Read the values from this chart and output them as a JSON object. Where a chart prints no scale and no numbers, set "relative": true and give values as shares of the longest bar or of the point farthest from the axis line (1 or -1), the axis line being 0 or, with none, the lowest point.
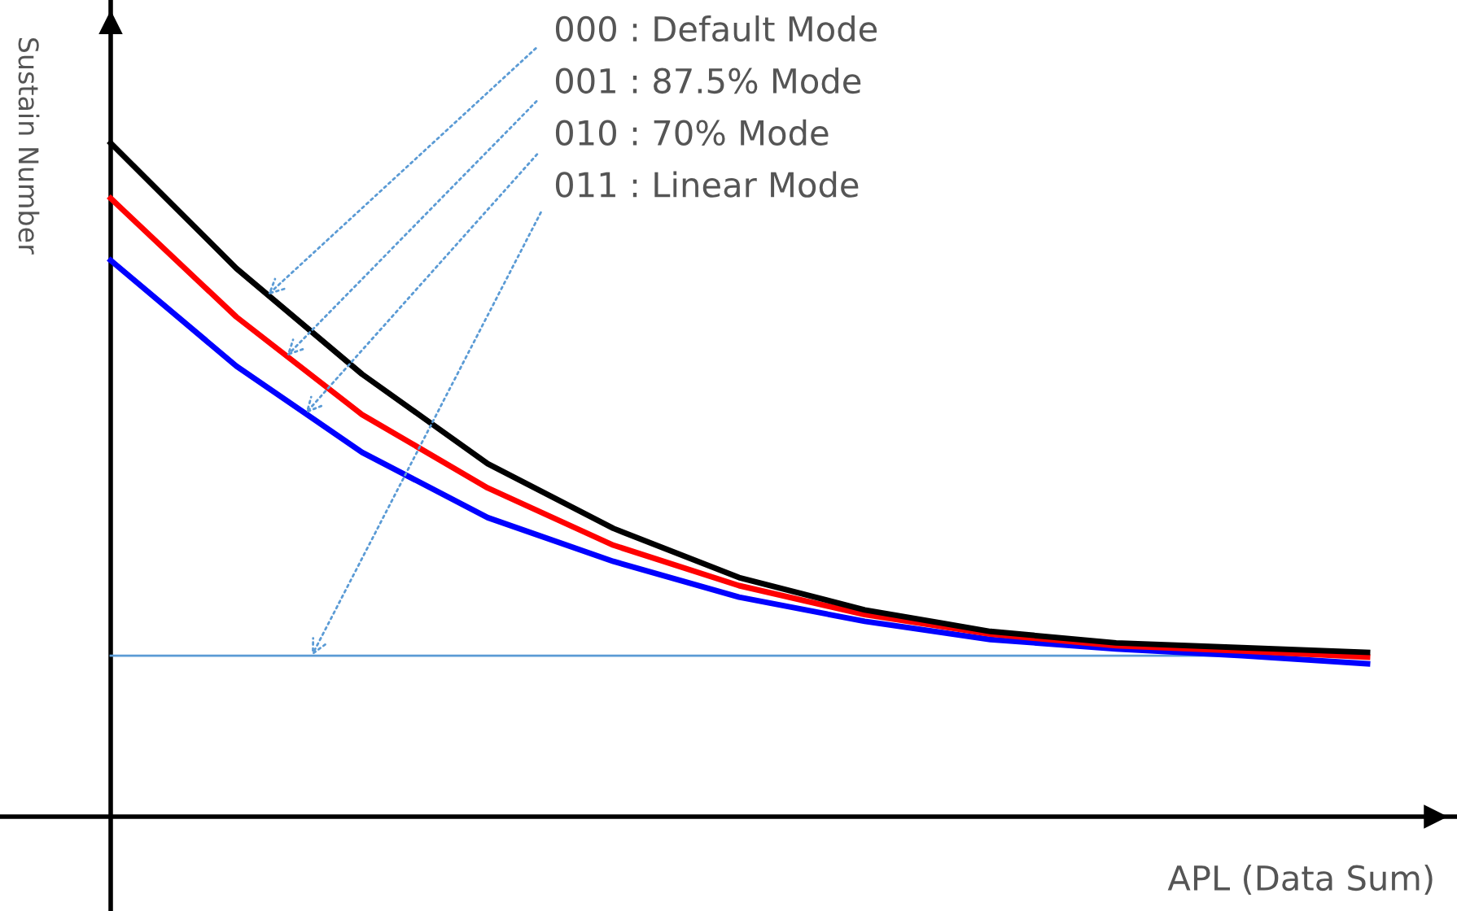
{
  "chart_data": {
    "type": "line",
    "relative": true,
    "xlabel": "APL (Data Sum)",
    "ylabel": "Sustain Number",
    "legend": "top",
    "marker": "none",
    "line_style": "solid",
    "categories": [
      null,
      null,
      null,
      null,
      null,
      null,
      null,
      null,
      null,
      null,
      null
    ],
    "series": [
      {
        "name": "000 : Default Mode",
        "color": "#000000",
        "values": [
          1.0,
          0.814,
          0.657,
          0.524,
          0.428,
          0.355,
          0.307,
          0.275,
          0.258,
          0.251,
          0.244
        ]
      },
      {
        "name": "001 : 87.5% Mode",
        "color": "#ff0000",
        "values": [
          0.918,
          0.742,
          0.597,
          0.488,
          0.403,
          0.343,
          0.3,
          0.271,
          0.254,
          0.246,
          0.237
        ]
      },
      {
        "name": "010 : 70% Mode",
        "color": "#0000ff",
        "values": [
          0.826,
          0.669,
          0.541,
          0.444,
          0.379,
          0.326,
          0.29,
          0.263,
          0.249,
          0.239,
          0.227
        ]
      },
      {
        "name": "011 : Linear Mode",
        "color": "#5b9bd5",
        "values": [
          0.239,
          0.239,
          0.239,
          0.239,
          0.239,
          0.239,
          0.239,
          0.239,
          0.239,
          0.239,
          0.239
        ]
      }
    ]
  }
}
